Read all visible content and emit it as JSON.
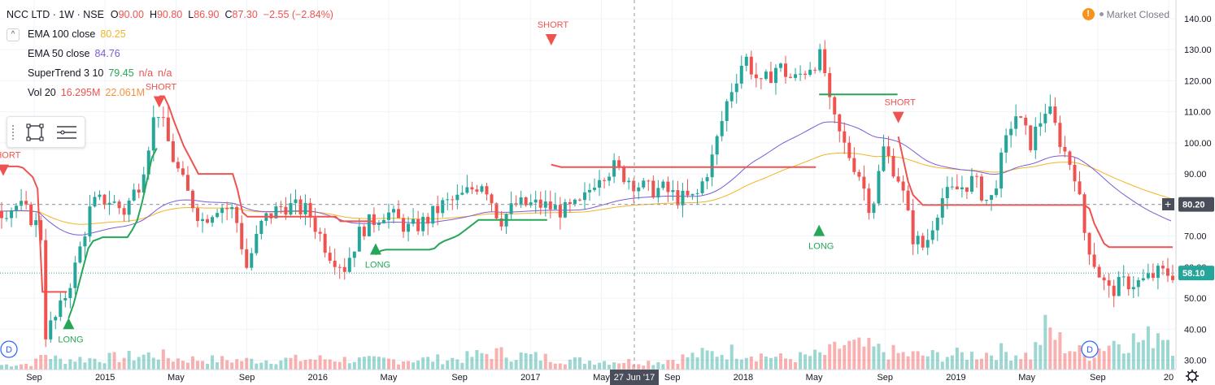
{
  "header": {
    "symbol": "NCC LTD · 1W · NSE",
    "ohlc": [
      {
        "key": "O",
        "value": "90.00"
      },
      {
        "key": "H",
        "value": "90.80"
      },
      {
        "key": "L",
        "value": "86.90"
      },
      {
        "key": "C",
        "value": "87.30"
      }
    ],
    "change": "−2.55 (−2.84%)",
    "toggle_symbol": "^",
    "status": {
      "warning_icon": "!",
      "text": "Market Closed"
    }
  },
  "indicators": [
    {
      "label": "EMA 100 close",
      "values": [
        "80.25"
      ],
      "colors": [
        "#f5b325"
      ]
    },
    {
      "label": "EMA 50 close",
      "values": [
        "84.76"
      ],
      "colors": [
        "#7b5bd6"
      ]
    },
    {
      "label": "SuperTrend 3 10",
      "values": [
        "79.45",
        "n/a",
        "n/a"
      ],
      "colors": [
        "#26a657",
        "#ef5350",
        "#ef5350"
      ]
    },
    {
      "label": "Vol 20",
      "values": [
        "16.295M",
        "22.061M"
      ],
      "colors": [
        "#ef5350",
        "#f5923e"
      ]
    }
  ],
  "price_badges": [
    {
      "value": "80.20",
      "color": "#4a4e5a"
    },
    {
      "value": "58.10",
      "color": "#26a69a"
    }
  ],
  "crosshair_label": "27 Jun '17",
  "gear_icon": "settings-gear-icon",
  "event_marker": "D",
  "colors": {
    "up": "#26a69a",
    "down": "#ef5350",
    "supertrend_up": "#26a657",
    "supertrend_down": "#ef5350",
    "ema100": "#f5b325",
    "ema50": "#7b5bd6"
  },
  "chart_data": {
    "type": "candlestick",
    "x_ticks": [
      "Sep",
      "2015",
      "May",
      "Sep",
      "2016",
      "May",
      "Sep",
      "2017",
      "May",
      "Sep",
      "2018",
      "May",
      "Sep",
      "2019",
      "May",
      "Sep",
      "20"
    ],
    "y_ticks": [
      30,
      40,
      50,
      60,
      70,
      80,
      90,
      100,
      110,
      120,
      130,
      140
    ],
    "ylim": [
      27,
      146
    ],
    "grid": true,
    "signals": [
      {
        "label": "SHORT",
        "type": "short",
        "week": 4,
        "price": 93
      },
      {
        "label": "LONG",
        "type": "long",
        "week": 84,
        "price": 40
      },
      {
        "label": "SHORT",
        "type": "short",
        "week": 195,
        "price": 115
      },
      {
        "label": "LONG",
        "type": "long",
        "week": 460,
        "price": 64
      },
      {
        "label": "SHORT",
        "type": "short",
        "week": 675,
        "price": 135
      },
      {
        "label": "LONG",
        "type": "long",
        "week": 1003,
        "price": 70
      },
      {
        "label": "SHORT",
        "type": "short",
        "week": 1100,
        "price": 110
      }
    ],
    "ohlc_close_path": [
      [
        0,
        78
      ],
      [
        20,
        80
      ],
      [
        40,
        75
      ],
      [
        48,
        70
      ],
      [
        52,
        38
      ],
      [
        70,
        45
      ],
      [
        90,
        60
      ],
      [
        110,
        80
      ],
      [
        130,
        82
      ],
      [
        150,
        78
      ],
      [
        170,
        88
      ],
      [
        190,
        112
      ],
      [
        210,
        95
      ],
      [
        225,
        85
      ],
      [
        245,
        75
      ],
      [
        265,
        80
      ],
      [
        285,
        78
      ],
      [
        300,
        60
      ],
      [
        320,
        75
      ],
      [
        345,
        80
      ],
      [
        375,
        78
      ],
      [
        400,
        65
      ],
      [
        420,
        60
      ],
      [
        440,
        72
      ],
      [
        470,
        78
      ],
      [
        500,
        72
      ],
      [
        520,
        75
      ],
      [
        540,
        80
      ],
      [
        560,
        82
      ],
      [
        590,
        88
      ],
      [
        610,
        75
      ],
      [
        630,
        80
      ],
      [
        660,
        80
      ],
      [
        690,
        78
      ],
      [
        710,
        80
      ],
      [
        730,
        90
      ],
      [
        750,
        92
      ],
      [
        770,
        88
      ],
      [
        790,
        85
      ],
      [
        810,
        85
      ],
      [
        830,
        82
      ],
      [
        850,
        82
      ],
      [
        870,
        95
      ],
      [
        890,
        115
      ],
      [
        910,
        128
      ],
      [
        930,
        118
      ],
      [
        950,
        125
      ],
      [
        970,
        120
      ],
      [
        990,
        125
      ],
      [
        1005,
        128
      ],
      [
        1015,
        110
      ],
      [
        1030,
        100
      ],
      [
        1050,
        90
      ],
      [
        1065,
        78
      ],
      [
        1080,
        98
      ],
      [
        1100,
        88
      ],
      [
        1115,
        70
      ],
      [
        1130,
        66
      ],
      [
        1150,
        82
      ],
      [
        1170,
        85
      ],
      [
        1190,
        88
      ],
      [
        1210,
        80
      ],
      [
        1225,
        95
      ],
      [
        1240,
        110
      ],
      [
        1260,
        100
      ],
      [
        1280,
        112
      ],
      [
        1300,
        98
      ],
      [
        1315,
        90
      ],
      [
        1325,
        72
      ],
      [
        1340,
        60
      ],
      [
        1355,
        52
      ],
      [
        1375,
        55
      ],
      [
        1395,
        55
      ],
      [
        1415,
        58
      ],
      [
        1440,
        58
      ]
    ],
    "volume_path": [
      [
        0,
        3
      ],
      [
        40,
        4
      ],
      [
        52,
        11
      ],
      [
        70,
        6
      ],
      [
        90,
        7
      ],
      [
        110,
        7
      ],
      [
        150,
        8
      ],
      [
        190,
        10
      ],
      [
        210,
        7
      ],
      [
        300,
        6
      ],
      [
        400,
        7
      ],
      [
        450,
        6
      ],
      [
        560,
        7
      ],
      [
        600,
        11
      ],
      [
        700,
        6
      ],
      [
        800,
        5
      ],
      [
        860,
        10
      ],
      [
        900,
        12
      ],
      [
        960,
        7
      ],
      [
        1010,
        10
      ],
      [
        1030,
        16
      ],
      [
        1060,
        14
      ],
      [
        1100,
        10
      ],
      [
        1130,
        9
      ],
      [
        1200,
        10
      ],
      [
        1220,
        12
      ],
      [
        1260,
        9
      ],
      [
        1280,
        27
      ],
      [
        1300,
        16
      ],
      [
        1330,
        9
      ],
      [
        1350,
        16
      ],
      [
        1370,
        20
      ],
      [
        1400,
        18
      ],
      [
        1420,
        28
      ],
      [
        1440,
        12
      ]
    ]
  }
}
